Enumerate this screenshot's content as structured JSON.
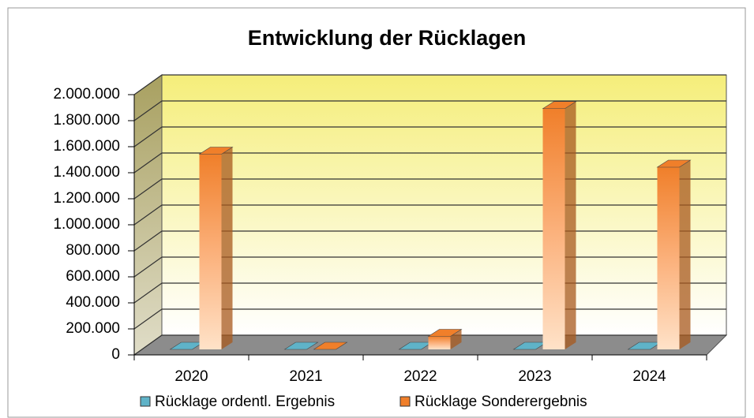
{
  "chart_data": {
    "type": "bar3d",
    "title": "Entwicklung  der Rücklagen",
    "categories": [
      "2020",
      "2021",
      "2022",
      "2023",
      "2024"
    ],
    "series": [
      {
        "name": "Rücklage ordentl. Ergebnis",
        "color": "#5fb3c8",
        "values": [
          0,
          0,
          0,
          0,
          0
        ]
      },
      {
        "name": "Rücklage Sonderergebnis",
        "color": "#f07f2a",
        "values": [
          1500000,
          0,
          100000,
          1850000,
          1400000
        ]
      }
    ],
    "ylim": [
      0,
      2000000
    ],
    "yticks": [
      0,
      {
        "value": 200000,
        "label": "200.000"
      },
      {
        "value": 400000,
        "label": "400.000"
      },
      {
        "value": 600000,
        "label": "600.000"
      },
      {
        "value": 800000,
        "label": "800.000"
      },
      {
        "value": 1000000,
        "label": "1.000.000"
      },
      {
        "value": 1200000,
        "label": "1.200.000"
      },
      {
        "value": 1400000,
        "label": "1.400.000"
      },
      {
        "value": 1600000,
        "label": "1.600.000"
      },
      {
        "value": 1800000,
        "label": "1.800.000"
      },
      {
        "value": 2000000,
        "label": "2.000.000"
      }
    ],
    "grid": true,
    "legend": "bottom"
  }
}
